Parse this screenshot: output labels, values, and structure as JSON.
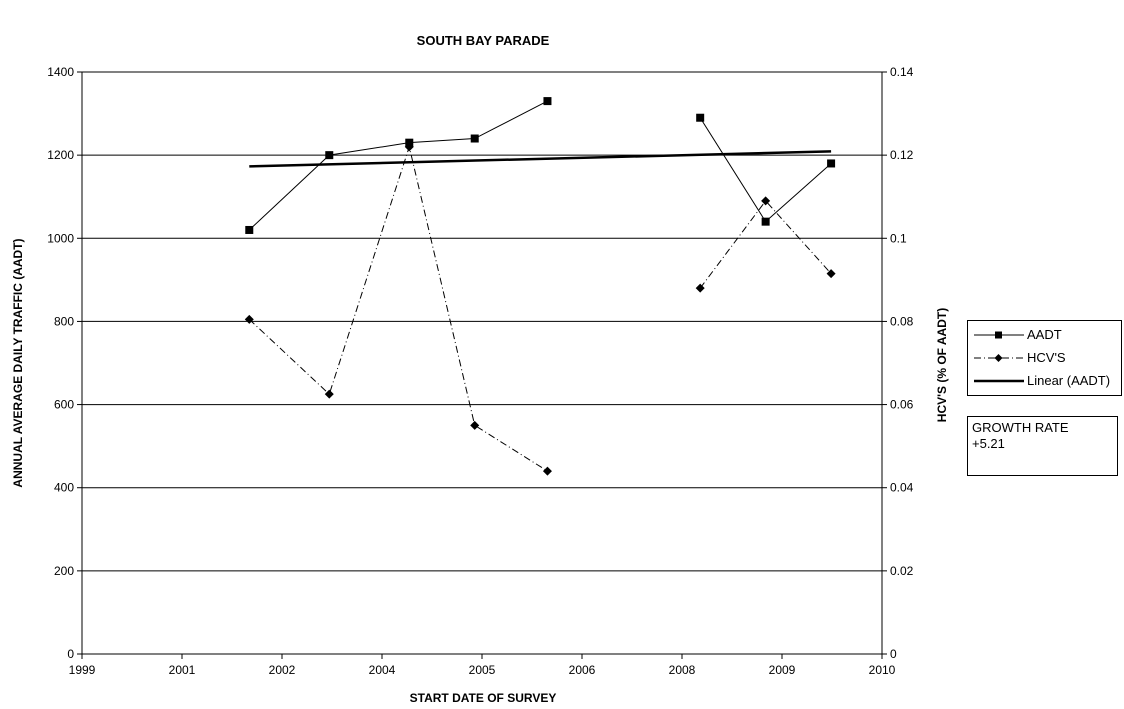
{
  "chart_data": {
    "type": "line",
    "title": "SOUTH BAY PARADE",
    "xlabel": "START DATE OF SURVEY",
    "ylabel": "ANNUAL AVERAGE DAILY TRAFFIC (AADT)",
    "y2label": "HCV'S (% OF AADT)",
    "x_ticks": [
      "1999",
      "2001",
      "2002",
      "2004",
      "2005",
      "2006",
      "2008",
      "2009",
      "2010"
    ],
    "x_range": [
      1999.0,
      2010.0
    ],
    "ylim": [
      0,
      1400
    ],
    "y_ticks": [
      0,
      200,
      400,
      600,
      800,
      1000,
      1200,
      1400
    ],
    "y2lim": [
      0,
      0.14
    ],
    "y2_ticks": [
      "0",
      "0.02",
      "0.04",
      "0.06",
      "0.08",
      "0.1",
      "0.12",
      "0.14"
    ],
    "grid": "horizontal",
    "legend_position": "right",
    "series": [
      {
        "name": "AADT",
        "axis": "left",
        "marker": "square",
        "line": "solid",
        "segments": [
          {
            "x": [
              2001.3,
              2002.4,
              2003.5,
              2004.4,
              2005.4
            ],
            "y": [
              1020,
              1200,
              1230,
              1240,
              1330
            ]
          },
          {
            "x": [
              2007.5,
              2008.4,
              2009.3
            ],
            "y": [
              1290,
              1040,
              1180
            ]
          }
        ]
      },
      {
        "name": "HCV'S",
        "axis": "right",
        "marker": "diamond",
        "line": "dashdot",
        "segments": [
          {
            "x": [
              2001.3,
              2002.4,
              2003.5,
              2004.4,
              2005.4
            ],
            "y": [
              0.0805,
              0.0625,
              0.122,
              0.055,
              0.044
            ]
          },
          {
            "x": [
              2007.5,
              2008.4,
              2009.3
            ],
            "y": [
              0.088,
              0.109,
              0.0915
            ]
          }
        ]
      },
      {
        "name": "Linear (AADT)",
        "axis": "left",
        "marker": "none",
        "line": "thick",
        "segments": [
          {
            "x": [
              2001.3,
              2009.3
            ],
            "y": [
              1173,
              1209
            ]
          }
        ]
      }
    ],
    "annotation": "GROWTH RATE\n+5.21"
  },
  "growth_box": {
    "line1": "GROWTH RATE",
    "line2": "+5.21"
  }
}
